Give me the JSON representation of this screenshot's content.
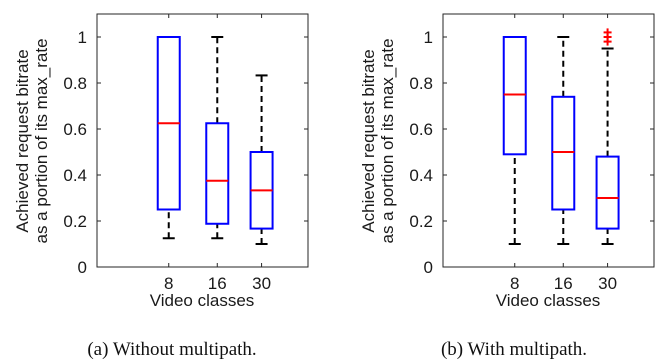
{
  "chart_data": [
    {
      "type": "box",
      "caption": "(a) Without multipath.",
      "xlabel": "Video classes",
      "ylabel": [
        "Achieved request bitrate",
        "as a portion of its max_rate"
      ],
      "ylim": [
        0,
        1.1
      ],
      "yticks": [
        "0",
        "0.2",
        "0.4",
        "0.6",
        "0.8",
        "1"
      ],
      "categories": [
        "8",
        "16",
        "30"
      ],
      "boxes": [
        {
          "category": "8",
          "min": 0.125,
          "q1": 0.25,
          "median": 0.625,
          "q3": 1.0,
          "max": 1.0,
          "outliers": []
        },
        {
          "category": "16",
          "min": 0.125,
          "q1": 0.188,
          "median": 0.375,
          "q3": 0.625,
          "max": 1.0,
          "outliers": []
        },
        {
          "category": "30",
          "min": 0.1,
          "q1": 0.167,
          "median": 0.333,
          "q3": 0.5,
          "max": 0.833,
          "outliers": []
        }
      ]
    },
    {
      "type": "box",
      "caption": "(b) With multipath.",
      "xlabel": "Video classes",
      "ylabel": [
        "Achieved request bitrate",
        "as a portion of its max_rate"
      ],
      "ylim": [
        0,
        1.1
      ],
      "yticks": [
        "0",
        "0.2",
        "0.4",
        "0.6",
        "0.8",
        "1"
      ],
      "categories": [
        "8",
        "16",
        "30"
      ],
      "boxes": [
        {
          "category": "8",
          "min": 0.1,
          "q1": 0.49,
          "median": 0.75,
          "q3": 1.0,
          "max": 1.0,
          "outliers": []
        },
        {
          "category": "16",
          "min": 0.1,
          "q1": 0.25,
          "median": 0.5,
          "q3": 0.74,
          "max": 1.0,
          "outliers": []
        },
        {
          "category": "30",
          "min": 0.1,
          "q1": 0.167,
          "median": 0.3,
          "q3": 0.48,
          "max": 0.95,
          "outliers": [
            0.98,
            1.0,
            1.02
          ]
        }
      ]
    }
  ],
  "colors": {
    "box": "#0000ff",
    "median": "#ff0000",
    "whisker": "#000000",
    "outlier": "#ff0000",
    "axis": "#262626"
  }
}
